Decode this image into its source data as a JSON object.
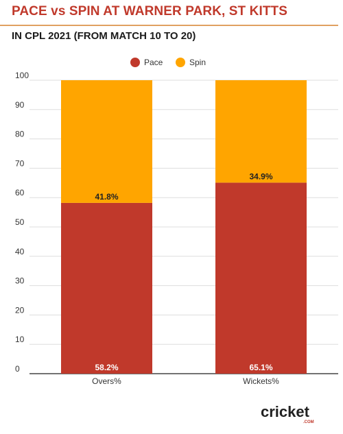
{
  "title": "PACE vs SPIN AT WARNER PARK, ST KITTS",
  "subtitle": "IN CPL 2021 (FROM MATCH 10 TO 20)",
  "brand": {
    "word": "cricket",
    "suffix": ".COM"
  },
  "colors": {
    "pace": "#c0392b",
    "spin": "#ffa500",
    "title": "#c0392b"
  },
  "chart_data": {
    "type": "bar",
    "stacked": true,
    "categories": [
      "Overs%",
      "Wickets%"
    ],
    "series": [
      {
        "name": "Pace",
        "values": [
          58.2,
          65.1
        ],
        "labels": [
          "58.2%",
          "65.1%"
        ]
      },
      {
        "name": "Spin",
        "values": [
          41.8,
          34.9
        ],
        "labels": [
          "41.8%",
          "34.9%"
        ]
      }
    ],
    "y_ticks": [
      "0",
      "10",
      "20",
      "30",
      "40",
      "50",
      "60",
      "70",
      "80",
      "90",
      "100"
    ],
    "ylim": [
      0,
      100
    ],
    "grid": true,
    "legend": "top-center"
  }
}
